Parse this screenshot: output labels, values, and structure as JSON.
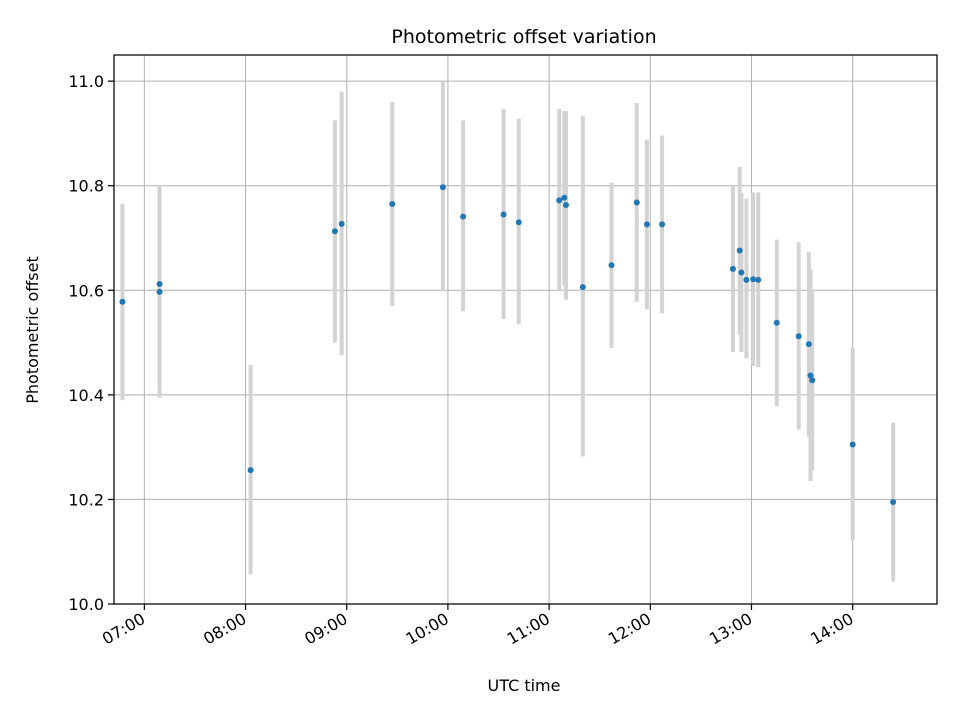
{
  "chart_data": {
    "type": "scatter",
    "title": "Photometric offset variation",
    "xlabel": "UTC time",
    "ylabel": "Photometric offset",
    "xlim": [
      "06:42",
      "14:50"
    ],
    "ylim": [
      10.0,
      11.05
    ],
    "grid": true,
    "x_ticks": [
      "07:00",
      "08:00",
      "09:00",
      "10:00",
      "11:00",
      "12:00",
      "13:00",
      "14:00"
    ],
    "y_ticks": [
      "10.0",
      "10.2",
      "10.4",
      "10.6",
      "10.8",
      "11.0"
    ],
    "colors": {
      "points": "#1f77b4",
      "error_bars": "#d3d3d3",
      "grid": "#b0b0b0"
    },
    "series": [
      {
        "points": [
          {
            "x": "06:47",
            "y": 10.578,
            "lo": 10.39,
            "hi": 10.765
          },
          {
            "x": "07:09",
            "y": 10.612,
            "lo": 10.42,
            "hi": 10.8
          },
          {
            "x": "07:09",
            "y": 10.597,
            "lo": 10.395,
            "hi": 10.8
          },
          {
            "x": "08:03",
            "y": 10.256,
            "lo": 10.057,
            "hi": 10.457
          },
          {
            "x": "08:53",
            "y": 10.713,
            "lo": 10.5,
            "hi": 10.925
          },
          {
            "x": "08:57",
            "y": 10.727,
            "lo": 10.476,
            "hi": 10.98
          },
          {
            "x": "09:27",
            "y": 10.765,
            "lo": 10.57,
            "hi": 10.96
          },
          {
            "x": "09:57",
            "y": 10.797,
            "lo": 10.598,
            "hi": 11.0
          },
          {
            "x": "10:09",
            "y": 10.741,
            "lo": 10.56,
            "hi": 10.925
          },
          {
            "x": "10:33",
            "y": 10.745,
            "lo": 10.545,
            "hi": 10.947
          },
          {
            "x": "10:42",
            "y": 10.73,
            "lo": 10.535,
            "hi": 10.928
          },
          {
            "x": "11:06",
            "y": 10.772,
            "lo": 10.6,
            "hi": 10.947
          },
          {
            "x": "11:09",
            "y": 10.777,
            "lo": 10.61,
            "hi": 10.943
          },
          {
            "x": "11:10",
            "y": 10.763,
            "lo": 10.582,
            "hi": 10.943
          },
          {
            "x": "11:20",
            "y": 10.606,
            "lo": 10.282,
            "hi": 10.933
          },
          {
            "x": "11:37",
            "y": 10.648,
            "lo": 10.49,
            "hi": 10.806
          },
          {
            "x": "11:52",
            "y": 10.768,
            "lo": 10.578,
            "hi": 10.958
          },
          {
            "x": "11:58",
            "y": 10.726,
            "lo": 10.564,
            "hi": 10.888
          },
          {
            "x": "12:07",
            "y": 10.726,
            "lo": 10.556,
            "hi": 10.896
          },
          {
            "x": "12:49",
            "y": 10.641,
            "lo": 10.482,
            "hi": 10.8
          },
          {
            "x": "12:53",
            "y": 10.676,
            "lo": 10.515,
            "hi": 10.836
          },
          {
            "x": "12:54",
            "y": 10.634,
            "lo": 10.482,
            "hi": 10.786
          },
          {
            "x": "12:57",
            "y": 10.62,
            "lo": 10.47,
            "hi": 10.775
          },
          {
            "x": "13:01",
            "y": 10.621,
            "lo": 10.455,
            "hi": 10.787
          },
          {
            "x": "13:04",
            "y": 10.62,
            "lo": 10.453,
            "hi": 10.787
          },
          {
            "x": "13:15",
            "y": 10.538,
            "lo": 10.378,
            "hi": 10.697
          },
          {
            "x": "13:28",
            "y": 10.512,
            "lo": 10.334,
            "hi": 10.692
          },
          {
            "x": "13:34",
            "y": 10.497,
            "lo": 10.32,
            "hi": 10.673
          },
          {
            "x": "13:35",
            "y": 10.437,
            "lo": 10.235,
            "hi": 10.64
          },
          {
            "x": "13:36",
            "y": 10.428,
            "lo": 10.255,
            "hi": 10.6
          },
          {
            "x": "14:00",
            "y": 10.305,
            "lo": 10.122,
            "hi": 10.49
          },
          {
            "x": "14:24",
            "y": 10.195,
            "lo": 10.043,
            "hi": 10.347
          }
        ]
      }
    ]
  }
}
